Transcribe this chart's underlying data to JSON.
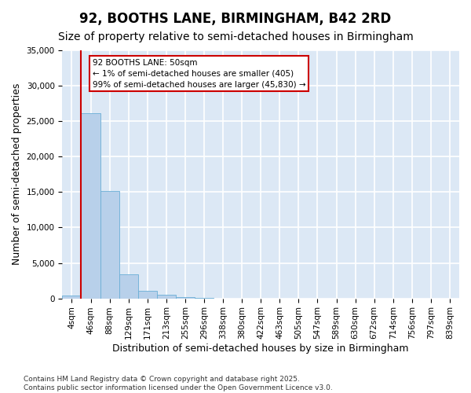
{
  "title": "92, BOOTHS LANE, BIRMINGHAM, B42 2RD",
  "subtitle": "Size of property relative to semi-detached houses in Birmingham",
  "xlabel": "Distribution of semi-detached houses by size in Birmingham",
  "ylabel": "Number of semi-detached properties",
  "annotation_title": "92 BOOTHS LANE: 50sqm",
  "annotation_smaller": "← 1% of semi-detached houses are smaller (405)",
  "annotation_larger": "99% of semi-detached houses are larger (45,830) →",
  "bar_color": "#b8d0ea",
  "bar_edge_color": "#6aaed6",
  "vline_color": "#cc0000",
  "ylim_max": 35000,
  "yticks": [
    0,
    5000,
    10000,
    15000,
    20000,
    25000,
    30000,
    35000
  ],
  "bin_labels": [
    "4sqm",
    "46sqm",
    "88sqm",
    "129sqm",
    "171sqm",
    "213sqm",
    "255sqm",
    "296sqm",
    "338sqm",
    "380sqm",
    "422sqm",
    "463sqm",
    "505sqm",
    "547sqm",
    "589sqm",
    "630sqm",
    "672sqm",
    "714sqm",
    "756sqm",
    "797sqm",
    "839sqm"
  ],
  "bar_values": [
    405,
    26100,
    15200,
    3400,
    1050,
    490,
    200,
    90,
    0,
    0,
    0,
    0,
    0,
    0,
    0,
    0,
    0,
    0,
    0,
    0,
    0
  ],
  "bg_color": "#dce8f5",
  "grid_color": "#ffffff",
  "footer": "Contains HM Land Registry data © Crown copyright and database right 2025.\nContains public sector information licensed under the Open Government Licence v3.0.",
  "title_fontsize": 12,
  "subtitle_fontsize": 10,
  "label_fontsize": 9,
  "tick_fontsize": 7.5,
  "footer_fontsize": 6.5
}
